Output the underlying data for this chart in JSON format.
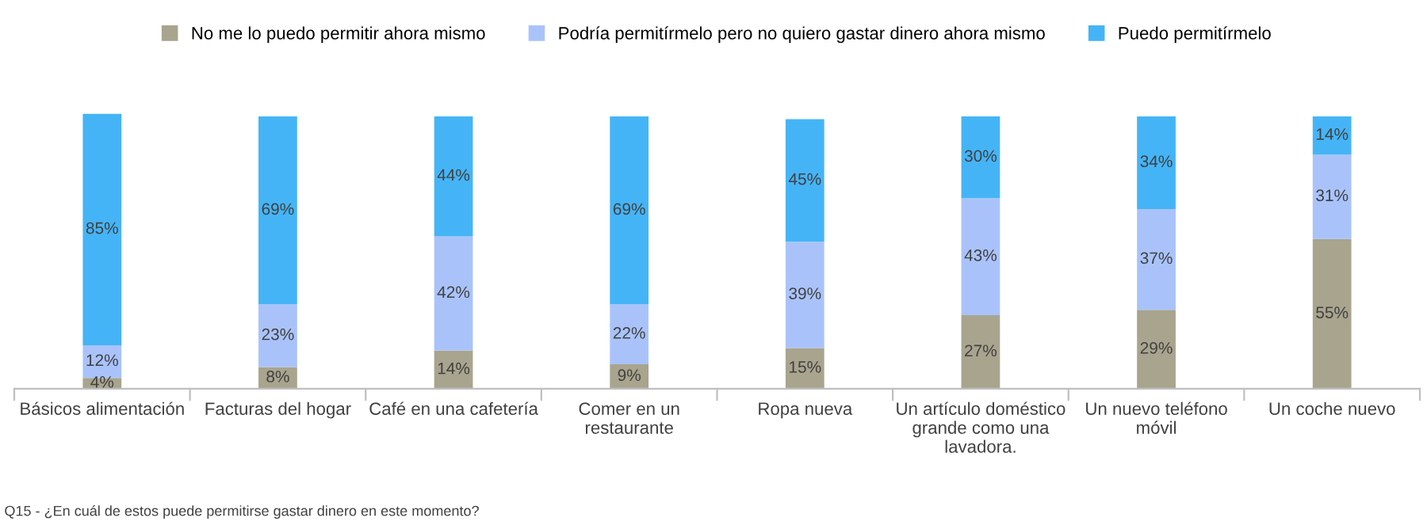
{
  "chart_data": {
    "type": "bar",
    "stacked": true,
    "legend": "top",
    "grid": false,
    "tick_labels": "x",
    "categories": [
      "Básicos alimentación",
      "Facturas del hogar",
      "Café en una cafetería",
      "Comer en un\nrestaurante",
      "Ropa nueva",
      "Un artículo doméstico\ngrande como una\nlavadora.",
      "Un nuevo teléfono\nmóvil",
      "Un coche nuevo"
    ],
    "series": [
      {
        "name": "No me lo puedo permitir ahora mismo",
        "color": "#a8a48e",
        "values": [
          4,
          8,
          14,
          9,
          15,
          27,
          29,
          55
        ],
        "value_labels": [
          "4%",
          "8%",
          "14%",
          "9%",
          "15%",
          "27%",
          "29%",
          "55%"
        ]
      },
      {
        "name": "Podría permitírmelo pero no quiero gastar dinero ahora mismo",
        "color": "#a9c3fa",
        "values": [
          12,
          23,
          42,
          22,
          39,
          43,
          37,
          31
        ],
        "value_labels": [
          "12%",
          "23%",
          "42%",
          "22%",
          "39%",
          "43%",
          "37%",
          "31%"
        ]
      },
      {
        "name": "Puedo permitírmelo",
        "color": "#45b4f6",
        "values": [
          85,
          69,
          44,
          69,
          45,
          30,
          34,
          14
        ],
        "value_labels": [
          "85%",
          "69%",
          "44%",
          "69%",
          "45%",
          "30%",
          "34%",
          "14%"
        ]
      }
    ],
    "annotations": [
      "Q15 - ¿En cuál de estos puede permitirse gastar dinero en este momento?"
    ]
  }
}
